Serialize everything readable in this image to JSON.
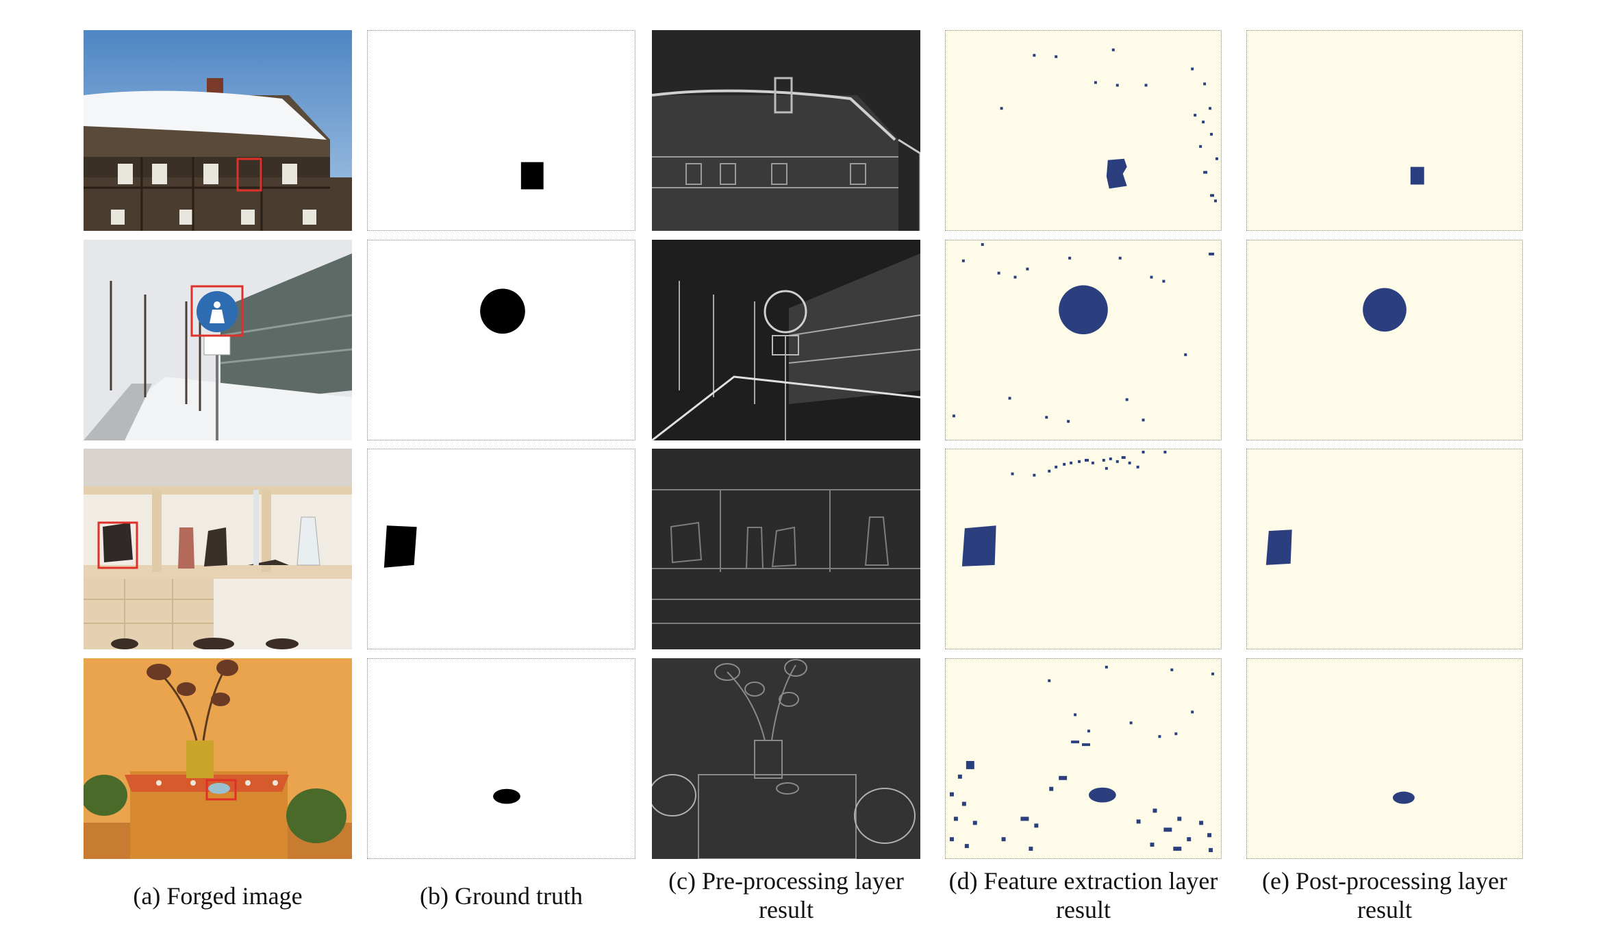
{
  "figure": {
    "columns": [
      {
        "lines": [
          "(a) Forged image"
        ]
      },
      {
        "lines": [
          "(b) Ground truth"
        ]
      },
      {
        "lines": [
          "(c) Pre-processing layer",
          "result"
        ]
      },
      {
        "lines": [
          "(d) Feature extraction layer",
          "result"
        ]
      },
      {
        "lines": [
          "(e) Post-processing layer",
          "result"
        ]
      }
    ],
    "rows": [
      {
        "scene": "snowy half-timbered house",
        "mask_shape": "rectangle"
      },
      {
        "scene": "pedestrian road sign in snowy street",
        "mask_shape": "circle"
      },
      {
        "scene": "wooden shelf with vases and stone",
        "mask_shape": "polygon"
      },
      {
        "scene": "plant on orange table",
        "mask_shape": "ellipse"
      }
    ],
    "colors": {
      "detection": "#2b3f7e",
      "detection_background": "#fefbe9",
      "forgery_box": "#e0302a",
      "mask": "#000000"
    }
  }
}
